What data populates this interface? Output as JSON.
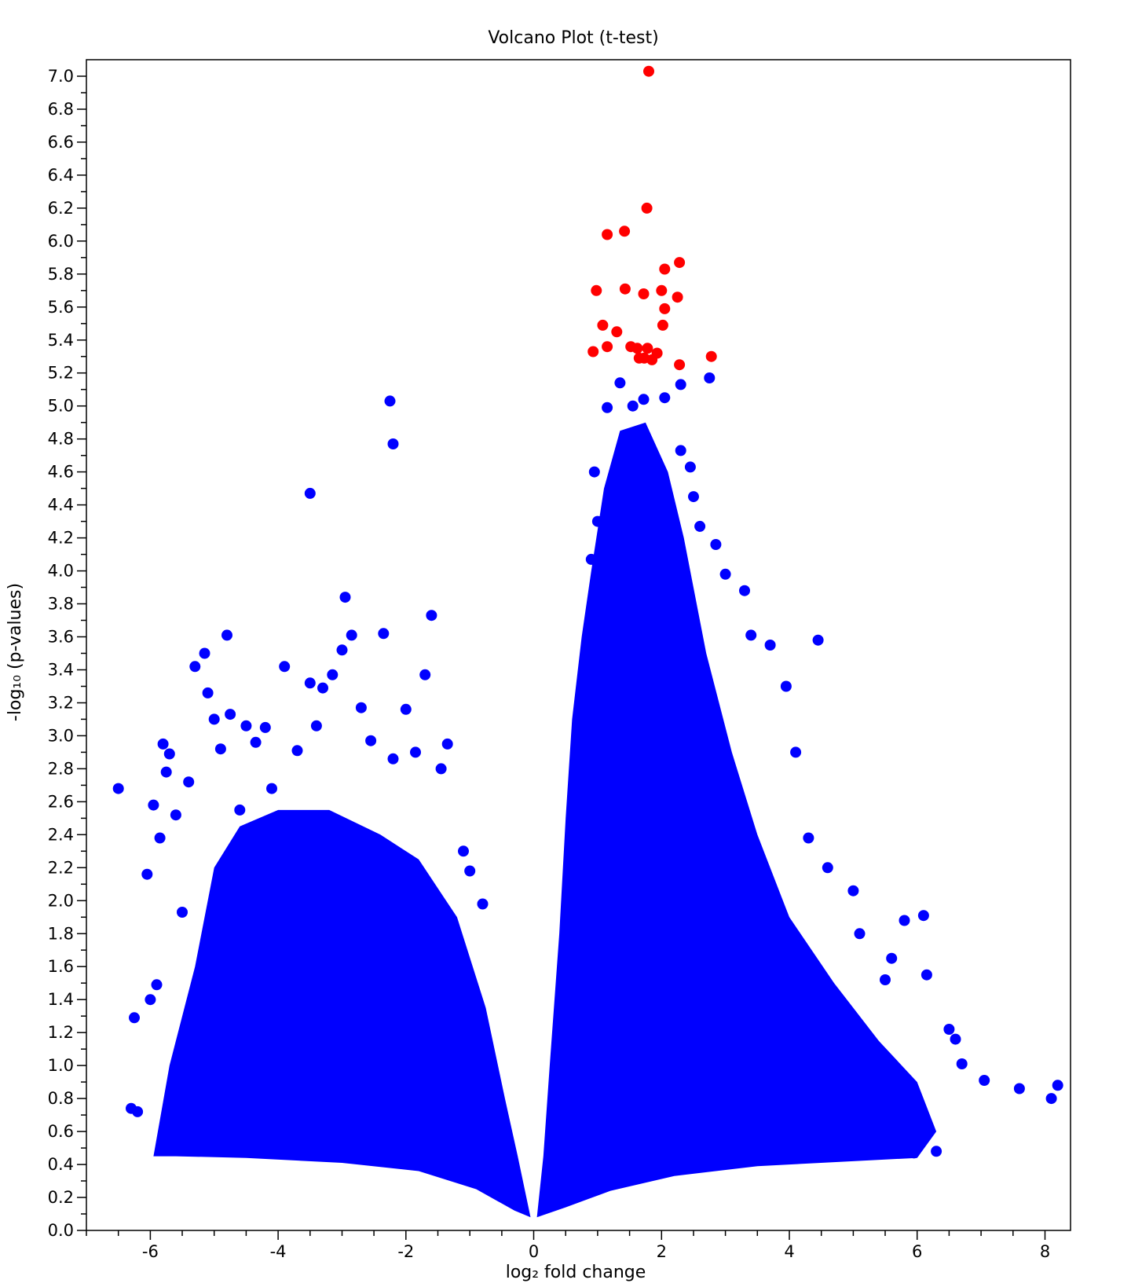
{
  "chart_data": {
    "type": "scatter",
    "title": "Volcano Plot (t-test)",
    "xlabel": "log₂ fold change",
    "ylabel": "-log₁₀ (p-values)",
    "xlim": [
      -7.0,
      8.4
    ],
    "ylim": [
      0.0,
      7.1
    ],
    "xticks": [
      -6,
      -4,
      -2,
      0,
      2,
      4,
      6,
      8
    ],
    "xtick_labels": [
      "-6",
      "-4",
      "-2",
      "0",
      "2",
      "4",
      "6",
      "8"
    ],
    "yticks": [
      0.0,
      0.2,
      0.4,
      0.6,
      0.8,
      1.0,
      1.2,
      1.4,
      1.6,
      1.8,
      2.0,
      2.2,
      2.4,
      2.6,
      2.8,
      3.0,
      3.2,
      3.4,
      3.6,
      3.8,
      4.0,
      4.2,
      4.4,
      4.6,
      4.8,
      5.0,
      5.2,
      5.4,
      5.6,
      5.8,
      6.0,
      6.2,
      6.4,
      6.6,
      6.8,
      7.0
    ],
    "ytick_labels": [
      "0.0",
      "0.2",
      "0.4",
      "0.6",
      "0.8",
      "1.0",
      "1.2",
      "1.4",
      "1.6",
      "1.8",
      "2.0",
      "2.2",
      "2.4",
      "2.6",
      "2.8",
      "3.0",
      "3.2",
      "3.4",
      "3.6",
      "3.8",
      "4.0",
      "4.2",
      "4.4",
      "4.6",
      "4.8",
      "5.0",
      "5.2",
      "5.4",
      "5.6",
      "5.8",
      "6.0",
      "6.2",
      "6.4",
      "6.6",
      "6.8",
      "7.0"
    ],
    "grid": false,
    "legend": "none",
    "series": [
      {
        "color": "#0000ff",
        "note_type": "not significant",
        "points": [
          [
            -6.5,
            2.68
          ],
          [
            -6.3,
            0.74
          ],
          [
            -6.25,
            1.29
          ],
          [
            -6.2,
            0.72
          ],
          [
            -6.05,
            2.16
          ],
          [
            -6.0,
            1.4
          ],
          [
            -5.95,
            2.58
          ],
          [
            -5.9,
            1.49
          ],
          [
            -5.85,
            2.38
          ],
          [
            -5.8,
            2.95
          ],
          [
            -5.75,
            2.78
          ],
          [
            -5.7,
            2.89
          ],
          [
            -5.6,
            2.52
          ],
          [
            -5.5,
            1.93
          ],
          [
            -5.4,
            2.72
          ],
          [
            -5.3,
            3.42
          ],
          [
            -5.15,
            3.5
          ],
          [
            -5.1,
            3.26
          ],
          [
            -5.0,
            3.1
          ],
          [
            -4.9,
            2.92
          ],
          [
            -4.8,
            3.61
          ],
          [
            -4.75,
            3.13
          ],
          [
            -4.6,
            2.55
          ],
          [
            -4.5,
            3.06
          ],
          [
            -4.35,
            2.96
          ],
          [
            -4.2,
            3.05
          ],
          [
            -4.1,
            2.68
          ],
          [
            -3.9,
            3.42
          ],
          [
            -3.7,
            2.91
          ],
          [
            -3.5,
            3.32
          ],
          [
            -3.4,
            3.06
          ],
          [
            -3.3,
            3.29
          ],
          [
            -3.15,
            3.37
          ],
          [
            -3.0,
            3.52
          ],
          [
            -2.95,
            3.84
          ],
          [
            -2.85,
            3.61
          ],
          [
            -2.7,
            3.17
          ],
          [
            -2.55,
            2.97
          ],
          [
            -2.35,
            3.62
          ],
          [
            -2.2,
            2.86
          ],
          [
            -2.0,
            3.16
          ],
          [
            -1.85,
            2.9
          ],
          [
            -1.7,
            3.37
          ],
          [
            -1.6,
            3.73
          ],
          [
            -1.45,
            2.8
          ],
          [
            -1.35,
            2.95
          ],
          [
            -1.1,
            2.3
          ],
          [
            -1.0,
            2.18
          ],
          [
            -0.8,
            1.98
          ],
          [
            -3.5,
            4.47
          ],
          [
            -2.25,
            5.03
          ],
          [
            -2.2,
            4.77
          ],
          [
            1.15,
            4.99
          ],
          [
            1.35,
            5.14
          ],
          [
            1.55,
            5.0
          ],
          [
            1.72,
            5.04
          ],
          [
            2.05,
            5.05
          ],
          [
            2.3,
            5.13
          ],
          [
            2.75,
            5.17
          ],
          [
            2.3,
            4.73
          ],
          [
            2.45,
            4.63
          ],
          [
            2.5,
            4.45
          ],
          [
            2.6,
            4.27
          ],
          [
            2.85,
            4.16
          ],
          [
            3.0,
            3.98
          ],
          [
            3.3,
            3.88
          ],
          [
            3.4,
            3.61
          ],
          [
            3.7,
            3.55
          ],
          [
            3.95,
            3.3
          ],
          [
            4.45,
            3.58
          ],
          [
            4.1,
            2.9
          ],
          [
            4.3,
            2.38
          ],
          [
            4.6,
            2.2
          ],
          [
            5.0,
            2.06
          ],
          [
            5.1,
            1.8
          ],
          [
            5.5,
            1.52
          ],
          [
            5.6,
            1.65
          ],
          [
            5.8,
            1.88
          ],
          [
            6.1,
            1.91
          ],
          [
            6.15,
            1.55
          ],
          [
            6.5,
            1.22
          ],
          [
            6.6,
            1.16
          ],
          [
            6.7,
            1.01
          ],
          [
            7.05,
            0.91
          ],
          [
            7.6,
            0.86
          ],
          [
            8.1,
            0.8
          ],
          [
            8.2,
            0.88
          ],
          [
            6.3,
            0.48
          ],
          [
            5.95,
            0.47
          ],
          [
            0.9,
            4.07
          ],
          [
            1.0,
            4.3
          ],
          [
            0.95,
            4.6
          ]
        ]
      },
      {
        "color": "#ff0000",
        "note_type": "significant",
        "points": [
          [
            1.8,
            7.03
          ],
          [
            1.77,
            6.2
          ],
          [
            1.15,
            6.04
          ],
          [
            1.42,
            6.06
          ],
          [
            2.28,
            5.87
          ],
          [
            2.05,
            5.83
          ],
          [
            0.98,
            5.7
          ],
          [
            1.43,
            5.71
          ],
          [
            1.72,
            5.68
          ],
          [
            2.0,
            5.7
          ],
          [
            2.25,
            5.66
          ],
          [
            2.05,
            5.59
          ],
          [
            1.08,
            5.49
          ],
          [
            2.02,
            5.49
          ],
          [
            1.3,
            5.45
          ],
          [
            1.15,
            5.36
          ],
          [
            1.52,
            5.36
          ],
          [
            1.62,
            5.35
          ],
          [
            1.78,
            5.35
          ],
          [
            1.93,
            5.32
          ],
          [
            0.93,
            5.33
          ],
          [
            1.65,
            5.29
          ],
          [
            1.85,
            5.28
          ],
          [
            1.73,
            5.29
          ],
          [
            2.28,
            5.25
          ],
          [
            2.78,
            5.3
          ]
        ]
      }
    ]
  }
}
